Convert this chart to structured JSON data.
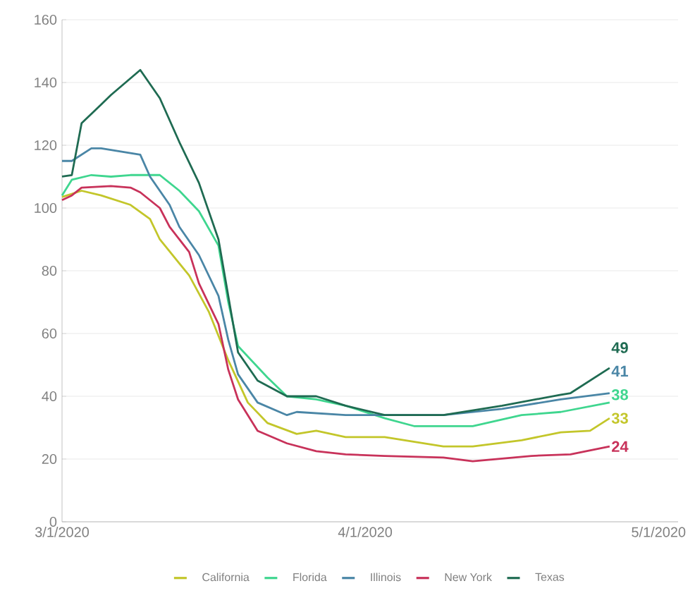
{
  "chart_data": {
    "type": "line",
    "xlim": [
      "2020-03-01",
      "2020-05-03"
    ],
    "xticks": [
      {
        "value": "2020-03-01",
        "label": "3/1/2020"
      },
      {
        "value": "2020-04-01",
        "label": "4/1/2020"
      },
      {
        "value": "2020-05-01",
        "label": "5/1/2020"
      }
    ],
    "ylim": [
      0,
      160
    ],
    "yticks": [
      0,
      20,
      40,
      60,
      80,
      100,
      120,
      140,
      160
    ],
    "grid": "y",
    "legend": "bottom",
    "marker": "none",
    "line_style": "solid",
    "series": [
      {
        "name": "California",
        "color": "#c3c62a",
        "x": [
          "2020-03-01",
          "2020-03-03",
          "2020-03-05",
          "2020-03-08",
          "2020-03-10",
          "2020-03-11",
          "2020-03-14",
          "2020-03-16",
          "2020-03-18",
          "2020-03-20",
          "2020-03-22",
          "2020-03-25",
          "2020-03-27",
          "2020-03-30",
          "2020-04-03",
          "2020-04-09",
          "2020-04-12",
          "2020-04-17",
          "2020-04-21",
          "2020-04-24",
          "2020-04-26"
        ],
        "values": [
          103.5,
          105.5,
          104,
          101,
          96.5,
          90,
          78.5,
          67,
          51.5,
          38,
          31.5,
          28,
          29,
          27,
          27,
          24,
          24,
          26,
          28.5,
          29,
          33
        ],
        "value_labels": [
          null,
          null,
          null,
          null,
          null,
          null,
          null,
          null,
          null,
          null,
          null,
          null,
          null,
          null,
          null,
          null,
          null,
          null,
          null,
          null,
          "33"
        ]
      },
      {
        "name": "Florida",
        "color": "#3fd68f",
        "x": [
          "2020-03-01",
          "2020-03-02",
          "2020-03-04",
          "2020-03-06",
          "2020-03-08",
          "2020-03-11",
          "2020-03-13",
          "2020-03-15",
          "2020-03-17",
          "2020-03-18",
          "2020-03-19",
          "2020-03-22",
          "2020-03-24",
          "2020-03-27",
          "2020-03-30",
          "2020-04-03",
          "2020-04-06",
          "2020-04-12",
          "2020-04-17",
          "2020-04-21",
          "2020-04-26"
        ],
        "values": [
          104,
          109,
          110.5,
          110,
          110.5,
          110.5,
          105.5,
          99,
          88,
          70,
          56,
          46,
          40,
          39,
          37,
          33,
          30.5,
          30.5,
          34,
          35,
          38
        ],
        "value_labels": [
          null,
          null,
          null,
          null,
          null,
          null,
          null,
          null,
          null,
          null,
          null,
          null,
          null,
          null,
          null,
          null,
          null,
          null,
          null,
          null,
          "38"
        ]
      },
      {
        "name": "Illinois",
        "color": "#4a86a6",
        "x": [
          "2020-03-01",
          "2020-03-02",
          "2020-03-04",
          "2020-03-05",
          "2020-03-07",
          "2020-03-09",
          "2020-03-10",
          "2020-03-12",
          "2020-03-13",
          "2020-03-15",
          "2020-03-17",
          "2020-03-18",
          "2020-03-19",
          "2020-03-21",
          "2020-03-24",
          "2020-03-25",
          "2020-03-30",
          "2020-04-03",
          "2020-04-09",
          "2020-04-15",
          "2020-04-21",
          "2020-04-26"
        ],
        "values": [
          115,
          115,
          119,
          119,
          118,
          117,
          110,
          101,
          94,
          85,
          72,
          58,
          47,
          38,
          34,
          35,
          34,
          34,
          34,
          36,
          39,
          41
        ],
        "value_labels": [
          null,
          null,
          null,
          null,
          null,
          null,
          null,
          null,
          null,
          null,
          null,
          null,
          null,
          null,
          null,
          null,
          null,
          null,
          null,
          null,
          null,
          "41"
        ]
      },
      {
        "name": "New York",
        "color": "#c8325a",
        "x": [
          "2020-03-01",
          "2020-03-02",
          "2020-03-03",
          "2020-03-06",
          "2020-03-08",
          "2020-03-09",
          "2020-03-11",
          "2020-03-12",
          "2020-03-14",
          "2020-03-15",
          "2020-03-17",
          "2020-03-18",
          "2020-03-19",
          "2020-03-21",
          "2020-03-24",
          "2020-03-27",
          "2020-03-30",
          "2020-04-03",
          "2020-04-09",
          "2020-04-12",
          "2020-04-18",
          "2020-04-22",
          "2020-04-26"
        ],
        "values": [
          102.5,
          104,
          106.5,
          107,
          106.5,
          105,
          100,
          94,
          86,
          76,
          63,
          48.5,
          39,
          29,
          25,
          22.5,
          21.5,
          21,
          20.5,
          19.3,
          21,
          21.5,
          24
        ],
        "value_labels": [
          null,
          null,
          null,
          null,
          null,
          null,
          null,
          null,
          null,
          null,
          null,
          null,
          null,
          null,
          null,
          null,
          null,
          null,
          null,
          null,
          null,
          null,
          "24"
        ]
      },
      {
        "name": "Texas",
        "color": "#1f6b52",
        "x": [
          "2020-03-01",
          "2020-03-02",
          "2020-03-03",
          "2020-03-05",
          "2020-03-06",
          "2020-03-09",
          "2020-03-11",
          "2020-03-13",
          "2020-03-15",
          "2020-03-17",
          "2020-03-18",
          "2020-03-19",
          "2020-03-21",
          "2020-03-24",
          "2020-03-27",
          "2020-03-30",
          "2020-04-03",
          "2020-04-09",
          "2020-04-15",
          "2020-04-21",
          "2020-04-22",
          "2020-04-26"
        ],
        "values": [
          110,
          110.5,
          127,
          133,
          136,
          144,
          135,
          121,
          108,
          90,
          72,
          54,
          45,
          40,
          40,
          37,
          34,
          34,
          37,
          40.5,
          41,
          49
        ],
        "value_labels": [
          null,
          null,
          null,
          null,
          null,
          null,
          null,
          null,
          null,
          null,
          null,
          null,
          null,
          null,
          null,
          null,
          null,
          null,
          null,
          null,
          null,
          "49"
        ]
      }
    ]
  }
}
